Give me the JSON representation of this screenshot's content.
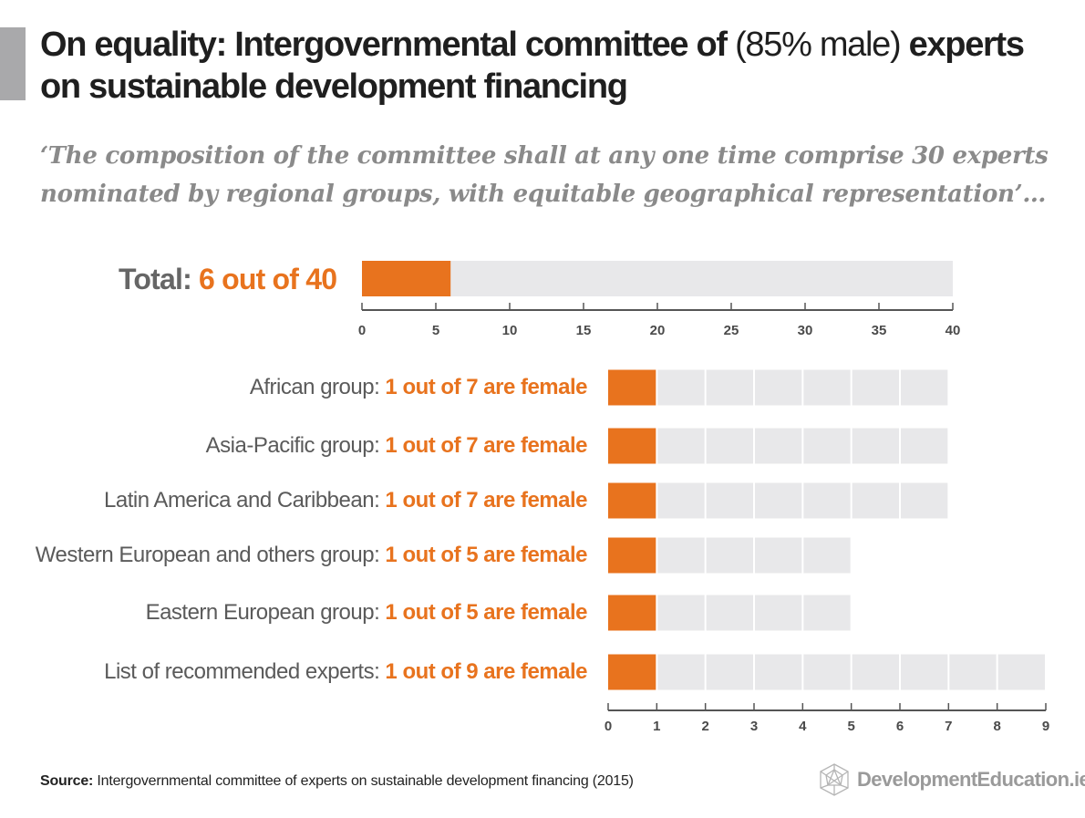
{
  "header": {
    "title_part1": "On equality: Intergovernmental committee of",
    "title_part2": "(85% male)",
    "title_part3": "experts on sustainable development financing",
    "quote": "‘The composition of the committee shall at any one time comprise 30 experts nominated by regional groups, with equitable geographical representation’…"
  },
  "total": {
    "label": "Total:",
    "value_text": "6 out of 40"
  },
  "rows": [
    {
      "label": "African group:",
      "value_text": "1 out of 7 are female"
    },
    {
      "label": "Asia-Pacific group:",
      "value_text": "1 out of 7 are female"
    },
    {
      "label": "Latin America and Caribbean:",
      "value_text": "1 out of 7 are female"
    },
    {
      "label": "Western European and others group:",
      "value_text": "1 out of 5 are female"
    },
    {
      "label": "Eastern European group:",
      "value_text": "1 out of 5 are female"
    },
    {
      "label": "List of recommended experts:",
      "value_text": "1 out of 9 are female"
    }
  ],
  "footer": {
    "source_label": "Source:",
    "source_text": "Intergovernmental committee of experts on sustainable development financing (2015)",
    "logo_text": "DevelopmentEducation.ie",
    "logo_icon": "geodesic-sphere-icon"
  },
  "colors": {
    "female": "#e8731e",
    "total_seats": "#e8e8ea",
    "title": "#1f1f1f",
    "quote": "#8a8a8a"
  },
  "chart_data": [
    {
      "type": "bar",
      "orientation": "horizontal",
      "categories": [
        "Total"
      ],
      "series": [
        {
          "name": "",
          "values": [
            6
          ]
        }
      ],
      "totals": [
        40
      ],
      "xlim": [
        0,
        40
      ],
      "xticks": [
        0,
        5,
        10,
        15,
        20,
        25,
        30,
        35,
        40
      ],
      "grid": false
    },
    {
      "type": "bar",
      "orientation": "horizontal",
      "categories": [
        "African group",
        "Asia-Pacific group",
        "Latin America and Caribbean",
        "Western European and others group",
        "Eastern European group",
        "List of recommended experts"
      ],
      "series": [
        {
          "name": "",
          "values": [
            1,
            1,
            1,
            1,
            1,
            1
          ]
        }
      ],
      "totals": [
        7,
        7,
        7,
        5,
        5,
        9
      ],
      "xlim": [
        0,
        9
      ],
      "xticks": [
        0,
        1,
        2,
        3,
        4,
        5,
        6,
        7,
        8,
        9
      ],
      "grid": false
    }
  ]
}
